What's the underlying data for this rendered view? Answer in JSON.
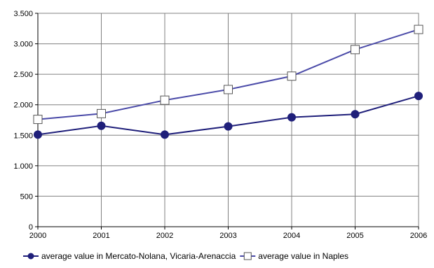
{
  "chart_data": {
    "type": "line",
    "title": "",
    "xlabel": "",
    "ylabel": "",
    "x": [
      "2000",
      "2001",
      "2002",
      "2003",
      "2004",
      "2005",
      "2006"
    ],
    "ylim": [
      0,
      3500
    ],
    "yticks": [
      0,
      500,
      1000,
      1500,
      2000,
      2500,
      3000,
      3500
    ],
    "ytick_labels": [
      "0",
      "500",
      "1.000",
      "1.500",
      "2.000",
      "2.500",
      "3.000",
      "3.500"
    ],
    "grid": true,
    "legend_position": "bottom",
    "series": [
      {
        "name": "average value in Mercato-Nolana, Vicaria-Arenaccia",
        "values": [
          1510,
          1655,
          1510,
          1645,
          1795,
          1845,
          2145
        ],
        "color": "#1f1f7a",
        "marker": "filled-circle"
      },
      {
        "name": "average value in Naples",
        "values": [
          1760,
          1855,
          2075,
          2250,
          2470,
          2905,
          3235
        ],
        "color": "#4a4aa8",
        "marker": "open-square"
      }
    ]
  }
}
